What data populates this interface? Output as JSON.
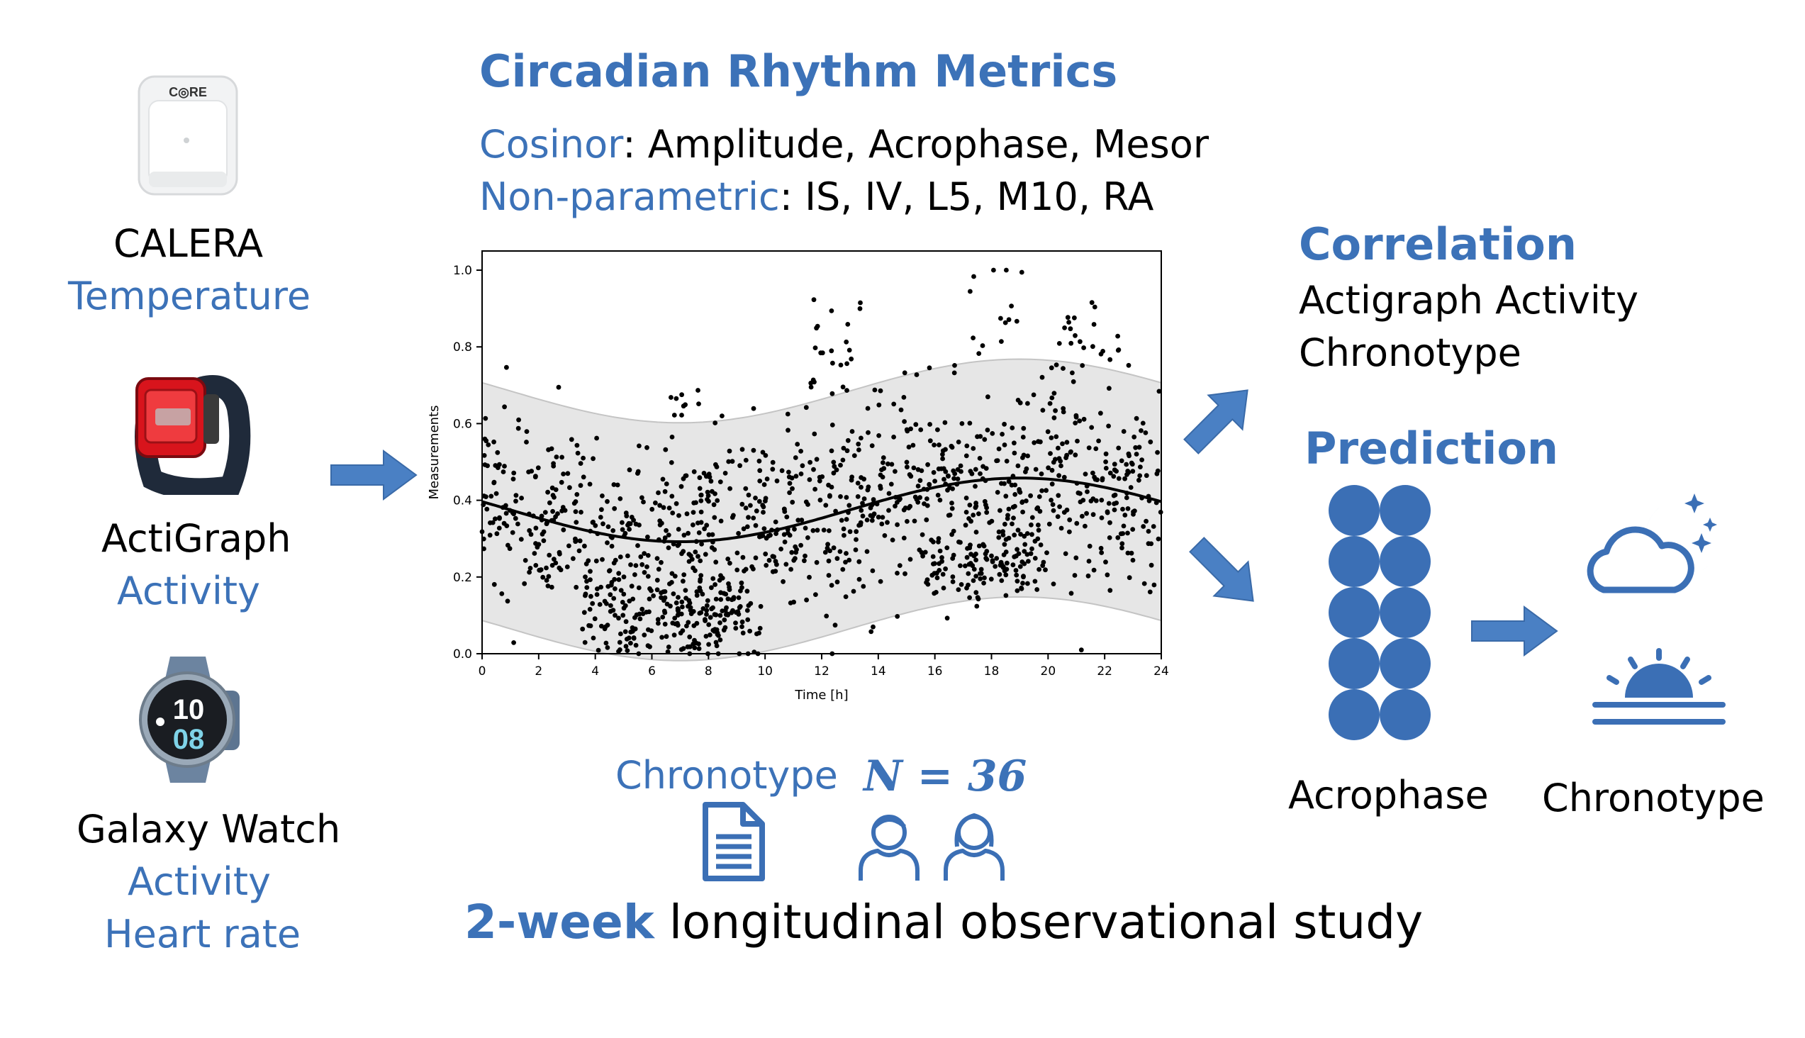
{
  "header": {
    "title": "Circadian Rhythm Metrics",
    "cosinor_label": "Cosinor",
    "cosinor_sep": ":",
    "cosinor_metrics": " Amplitude, Acrophase, Mesor",
    "nonparam_label": "Non-parametric",
    "nonparam_sep": ":",
    "nonparam_metrics": " IS, IV, L5, M10, RA"
  },
  "devices": [
    {
      "name": "CALERA",
      "signals": [
        "Temperature"
      ],
      "icon": "core-sensor-icon"
    },
    {
      "name": "ActiGraph",
      "signals": [
        "Activity"
      ],
      "icon": "actigraph-icon"
    },
    {
      "name": "Galaxy Watch",
      "signals": [
        "Activity",
        "Heart rate"
      ],
      "icon": "smartwatch-icon"
    }
  ],
  "core_logo_text": "C◎RE",
  "watch_face": {
    "hour": "10",
    "minute": "08"
  },
  "right": {
    "correlation_title": "Correlation",
    "correlation_items": [
      "Actigraph Activity",
      "Chronotype"
    ],
    "prediction_title": "Prediction",
    "acrophase_label": "Acrophase",
    "chronotype_label": "Chronotype"
  },
  "bottom": {
    "chronotype_label": "Chronotype",
    "n_label": "N = 36",
    "study_bold": "2-week",
    "study_rest": " longitudinal observational study"
  },
  "colors": {
    "accent": "#3c72b8",
    "arrow": "#4a80c4",
    "band": "#e6e6e6",
    "band_edge": "#c4c4c4"
  },
  "chart_data": {
    "type": "scatter",
    "xlabel": "Time [h]",
    "ylabel": "Measurements",
    "xlim": [
      0,
      24
    ],
    "ylim": [
      0,
      1.05
    ],
    "xticks": [
      0,
      2,
      4,
      6,
      8,
      10,
      12,
      14,
      16,
      18,
      20,
      22,
      24
    ],
    "yticks": [
      0.0,
      0.2,
      0.4,
      0.6,
      0.8,
      1.0
    ],
    "fit": {
      "mesor": 0.375,
      "amplitude": 0.083,
      "acrophase_h": 19.0,
      "period_h": 24
    },
    "band_halfwidth": 0.31,
    "point_clusters": [
      {
        "x": [
          0,
          24
        ],
        "y_center": "fit",
        "spread": 0.13,
        "count": 1050
      },
      {
        "x": [
          3.5,
          9.5
        ],
        "y_center": 0.09,
        "spread": 0.05,
        "count": 190
      },
      {
        "x": [
          11.5,
          13.5
        ],
        "y_center": 0.78,
        "spread": 0.08,
        "count": 24
      },
      {
        "x": [
          17.2,
          19.2
        ],
        "y_center": 0.9,
        "spread": 0.06,
        "count": 14
      },
      {
        "x": [
          19.8,
          22.5
        ],
        "y_center": 0.8,
        "spread": 0.06,
        "count": 22
      },
      {
        "x": [
          6.5,
          8
        ],
        "y_center": 0.66,
        "spread": 0.03,
        "count": 8
      },
      {
        "x": [
          15.5,
          20
        ],
        "y_center": 0.23,
        "spread": 0.04,
        "count": 120
      }
    ]
  }
}
